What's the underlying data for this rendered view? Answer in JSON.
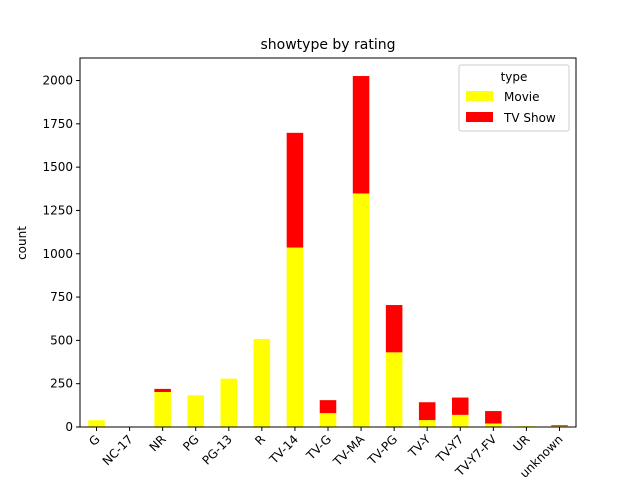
{
  "chart_data": {
    "type": "bar",
    "stacked": true,
    "title": "showtype by rating",
    "xlabel": "",
    "ylabel": "count",
    "ylim": [
      0,
      2130
    ],
    "yticks": [
      0,
      250,
      500,
      750,
      1000,
      1250,
      1500,
      1750,
      2000
    ],
    "categories": [
      "G",
      "NC-17",
      "NR",
      "PG",
      "PG-13",
      "R",
      "TV-14",
      "TV-G",
      "TV-MA",
      "TV-PG",
      "TV-Y",
      "TV-Y7",
      "TV-Y7-FV",
      "UR",
      "unknown"
    ],
    "series": [
      {
        "name": "Movie",
        "color": "#ffff00",
        "values": [
          39,
          3,
          202,
          183,
          279,
          508,
          1036,
          80,
          1348,
          431,
          40,
          70,
          20,
          5,
          5
        ]
      },
      {
        "name": "TV Show",
        "color": "#ff0000",
        "values": [
          0,
          0,
          18,
          0,
          0,
          0,
          662,
          75,
          678,
          273,
          103,
          100,
          72,
          0,
          5
        ]
      }
    ],
    "legend": {
      "title": "type",
      "position": "top-right"
    },
    "grid": false
  }
}
